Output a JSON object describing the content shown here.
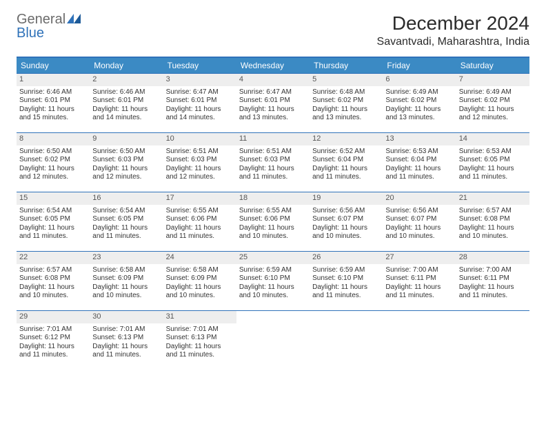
{
  "logo": {
    "word1": "General",
    "word2": "Blue"
  },
  "header": {
    "month_title": "December 2024",
    "location": "Savantvadi, Maharashtra, India"
  },
  "colors": {
    "header_bg": "#3b8ac4",
    "header_text": "#ffffff",
    "accent_border": "#2f72b9",
    "daynum_bg": "#eeeeee",
    "logo_gray": "#6b6b6b",
    "logo_blue": "#2f72b9",
    "body_text": "#333333",
    "background": "#ffffff"
  },
  "fonts": {
    "family": "Arial",
    "month_title_size": 28,
    "location_size": 16,
    "weekday_size": 12,
    "cell_size": 10
  },
  "weekdays": [
    "Sunday",
    "Monday",
    "Tuesday",
    "Wednesday",
    "Thursday",
    "Friday",
    "Saturday"
  ],
  "weeks": [
    [
      {
        "day": "1",
        "sunrise": "Sunrise: 6:46 AM",
        "sunset": "Sunset: 6:01 PM",
        "day1": "Daylight: 11 hours",
        "day2": "and 15 minutes."
      },
      {
        "day": "2",
        "sunrise": "Sunrise: 6:46 AM",
        "sunset": "Sunset: 6:01 PM",
        "day1": "Daylight: 11 hours",
        "day2": "and 14 minutes."
      },
      {
        "day": "3",
        "sunrise": "Sunrise: 6:47 AM",
        "sunset": "Sunset: 6:01 PM",
        "day1": "Daylight: 11 hours",
        "day2": "and 14 minutes."
      },
      {
        "day": "4",
        "sunrise": "Sunrise: 6:47 AM",
        "sunset": "Sunset: 6:01 PM",
        "day1": "Daylight: 11 hours",
        "day2": "and 13 minutes."
      },
      {
        "day": "5",
        "sunrise": "Sunrise: 6:48 AM",
        "sunset": "Sunset: 6:02 PM",
        "day1": "Daylight: 11 hours",
        "day2": "and 13 minutes."
      },
      {
        "day": "6",
        "sunrise": "Sunrise: 6:49 AM",
        "sunset": "Sunset: 6:02 PM",
        "day1": "Daylight: 11 hours",
        "day2": "and 13 minutes."
      },
      {
        "day": "7",
        "sunrise": "Sunrise: 6:49 AM",
        "sunset": "Sunset: 6:02 PM",
        "day1": "Daylight: 11 hours",
        "day2": "and 12 minutes."
      }
    ],
    [
      {
        "day": "8",
        "sunrise": "Sunrise: 6:50 AM",
        "sunset": "Sunset: 6:02 PM",
        "day1": "Daylight: 11 hours",
        "day2": "and 12 minutes."
      },
      {
        "day": "9",
        "sunrise": "Sunrise: 6:50 AM",
        "sunset": "Sunset: 6:03 PM",
        "day1": "Daylight: 11 hours",
        "day2": "and 12 minutes."
      },
      {
        "day": "10",
        "sunrise": "Sunrise: 6:51 AM",
        "sunset": "Sunset: 6:03 PM",
        "day1": "Daylight: 11 hours",
        "day2": "and 12 minutes."
      },
      {
        "day": "11",
        "sunrise": "Sunrise: 6:51 AM",
        "sunset": "Sunset: 6:03 PM",
        "day1": "Daylight: 11 hours",
        "day2": "and 11 minutes."
      },
      {
        "day": "12",
        "sunrise": "Sunrise: 6:52 AM",
        "sunset": "Sunset: 6:04 PM",
        "day1": "Daylight: 11 hours",
        "day2": "and 11 minutes."
      },
      {
        "day": "13",
        "sunrise": "Sunrise: 6:53 AM",
        "sunset": "Sunset: 6:04 PM",
        "day1": "Daylight: 11 hours",
        "day2": "and 11 minutes."
      },
      {
        "day": "14",
        "sunrise": "Sunrise: 6:53 AM",
        "sunset": "Sunset: 6:05 PM",
        "day1": "Daylight: 11 hours",
        "day2": "and 11 minutes."
      }
    ],
    [
      {
        "day": "15",
        "sunrise": "Sunrise: 6:54 AM",
        "sunset": "Sunset: 6:05 PM",
        "day1": "Daylight: 11 hours",
        "day2": "and 11 minutes."
      },
      {
        "day": "16",
        "sunrise": "Sunrise: 6:54 AM",
        "sunset": "Sunset: 6:05 PM",
        "day1": "Daylight: 11 hours",
        "day2": "and 11 minutes."
      },
      {
        "day": "17",
        "sunrise": "Sunrise: 6:55 AM",
        "sunset": "Sunset: 6:06 PM",
        "day1": "Daylight: 11 hours",
        "day2": "and 11 minutes."
      },
      {
        "day": "18",
        "sunrise": "Sunrise: 6:55 AM",
        "sunset": "Sunset: 6:06 PM",
        "day1": "Daylight: 11 hours",
        "day2": "and 10 minutes."
      },
      {
        "day": "19",
        "sunrise": "Sunrise: 6:56 AM",
        "sunset": "Sunset: 6:07 PM",
        "day1": "Daylight: 11 hours",
        "day2": "and 10 minutes."
      },
      {
        "day": "20",
        "sunrise": "Sunrise: 6:56 AM",
        "sunset": "Sunset: 6:07 PM",
        "day1": "Daylight: 11 hours",
        "day2": "and 10 minutes."
      },
      {
        "day": "21",
        "sunrise": "Sunrise: 6:57 AM",
        "sunset": "Sunset: 6:08 PM",
        "day1": "Daylight: 11 hours",
        "day2": "and 10 minutes."
      }
    ],
    [
      {
        "day": "22",
        "sunrise": "Sunrise: 6:57 AM",
        "sunset": "Sunset: 6:08 PM",
        "day1": "Daylight: 11 hours",
        "day2": "and 10 minutes."
      },
      {
        "day": "23",
        "sunrise": "Sunrise: 6:58 AM",
        "sunset": "Sunset: 6:09 PM",
        "day1": "Daylight: 11 hours",
        "day2": "and 10 minutes."
      },
      {
        "day": "24",
        "sunrise": "Sunrise: 6:58 AM",
        "sunset": "Sunset: 6:09 PM",
        "day1": "Daylight: 11 hours",
        "day2": "and 10 minutes."
      },
      {
        "day": "25",
        "sunrise": "Sunrise: 6:59 AM",
        "sunset": "Sunset: 6:10 PM",
        "day1": "Daylight: 11 hours",
        "day2": "and 10 minutes."
      },
      {
        "day": "26",
        "sunrise": "Sunrise: 6:59 AM",
        "sunset": "Sunset: 6:10 PM",
        "day1": "Daylight: 11 hours",
        "day2": "and 11 minutes."
      },
      {
        "day": "27",
        "sunrise": "Sunrise: 7:00 AM",
        "sunset": "Sunset: 6:11 PM",
        "day1": "Daylight: 11 hours",
        "day2": "and 11 minutes."
      },
      {
        "day": "28",
        "sunrise": "Sunrise: 7:00 AM",
        "sunset": "Sunset: 6:11 PM",
        "day1": "Daylight: 11 hours",
        "day2": "and 11 minutes."
      }
    ],
    [
      {
        "day": "29",
        "sunrise": "Sunrise: 7:01 AM",
        "sunset": "Sunset: 6:12 PM",
        "day1": "Daylight: 11 hours",
        "day2": "and 11 minutes."
      },
      {
        "day": "30",
        "sunrise": "Sunrise: 7:01 AM",
        "sunset": "Sunset: 6:13 PM",
        "day1": "Daylight: 11 hours",
        "day2": "and 11 minutes."
      },
      {
        "day": "31",
        "sunrise": "Sunrise: 7:01 AM",
        "sunset": "Sunset: 6:13 PM",
        "day1": "Daylight: 11 hours",
        "day2": "and 11 minutes."
      },
      null,
      null,
      null,
      null
    ]
  ]
}
